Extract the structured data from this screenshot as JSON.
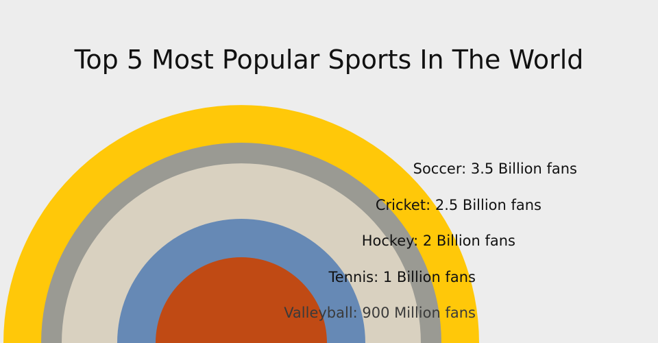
{
  "chart_data": {
    "type": "bar",
    "title": "Top 5 Most Popular Sports In The World",
    "categories": [
      "Soccer",
      "Cricket",
      "Hockey",
      "Tennis",
      "Valleyball"
    ],
    "values": [
      3.5,
      2.5,
      2,
      1,
      0.9
    ],
    "unit": "Billion fans",
    "labels": [
      "Soccer: 3.5 Billion fans",
      "Cricket: 2.5 Billion fans",
      "Hockey: 2 Billion fans",
      "Tennis: 1 Billion fans",
      "Valleyball: 900 Million fans"
    ],
    "colors": [
      "#ffc809",
      "#9a9a93",
      "#d9d1c0",
      "#6689b5",
      "#c04a14"
    ],
    "background": "#ededed",
    "shape": "concentric semicircles"
  }
}
